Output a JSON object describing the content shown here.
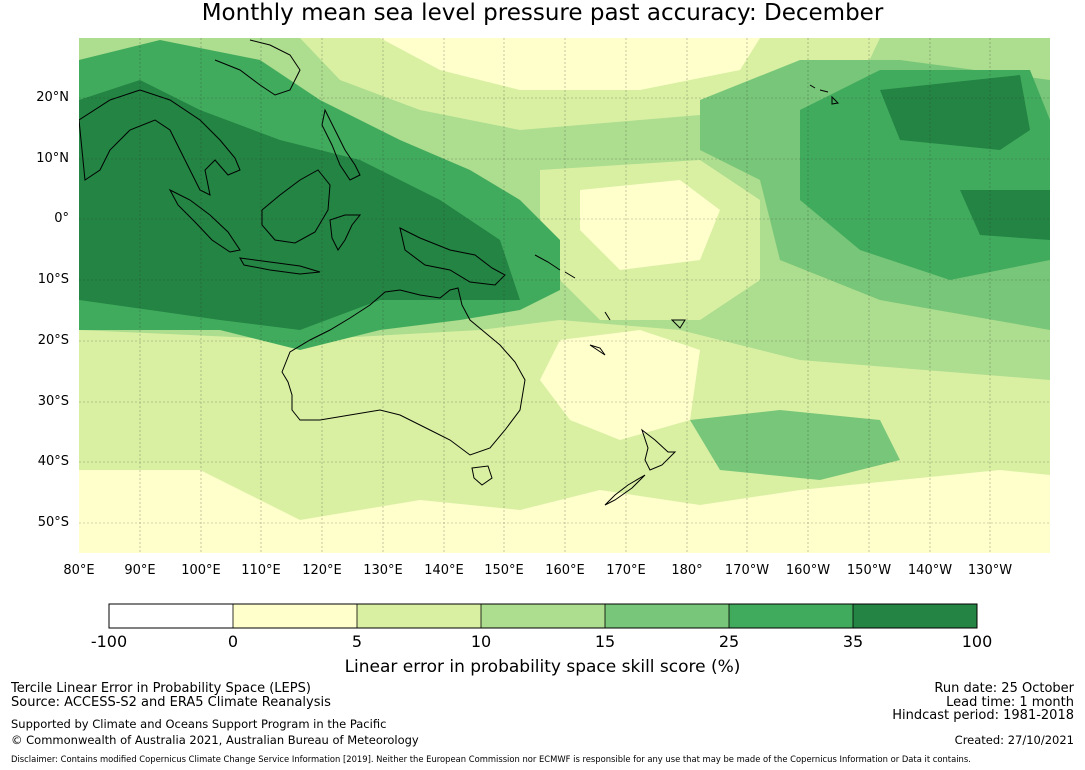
{
  "title": "Monthly mean sea level pressure past accuracy: December",
  "map": {
    "lat_labels": [
      "20°N",
      "10°N",
      "0°",
      "10°S",
      "20°S",
      "30°S",
      "40°S",
      "50°S"
    ],
    "lon_labels": [
      "80°E",
      "90°E",
      "100°E",
      "110°E",
      "120°E",
      "130°E",
      "140°E",
      "150°E",
      "160°E",
      "170°E",
      "180°",
      "170°W",
      "160°W",
      "150°W",
      "140°W",
      "130°W"
    ],
    "ocean_color": "#ffffcc",
    "coast_color": "#000000"
  },
  "colorbar": {
    "ticks": [
      "-100",
      "0",
      "5",
      "10",
      "15",
      "25",
      "35",
      "100"
    ],
    "colors": [
      "#ffffff",
      "#ffffcc",
      "#d9f0a3",
      "#addd8e",
      "#78c679",
      "#41ab5d",
      "#238443"
    ],
    "label": "Linear error in probability space skill score (%)"
  },
  "footer": {
    "line1": "Tercile Linear Error in Probability Space (LEPS)",
    "line2": "Source: ACCESS-S2 and ERA5 Climate Reanalysis",
    "line3": "Supported by Climate and Oceans Support Program in the Pacific",
    "line4": "© Commonwealth of Australia 2021, Australian Bureau of Meteorology",
    "run_date": "Run date: 25 October",
    "lead_time": "Lead time: 1 month",
    "hindcast": "Hindcast period: 1981-2018",
    "created": "Created: 27/10/2021",
    "disclaimer": "Disclaimer: Contains modified Copernicus Climate Change Service Information [2019]. Neither the European Commission nor ECMWF is responsible for any use that may be made of the Copernicus Information or Data it contains."
  }
}
